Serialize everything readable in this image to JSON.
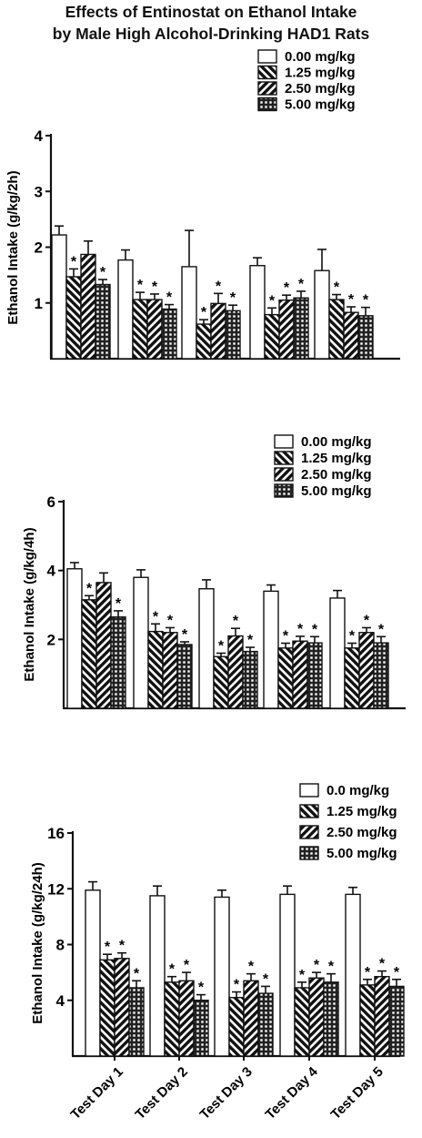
{
  "title": {
    "line1": "Effects of Entinostat on Ethanol Intake",
    "line2": "by Male High Alcohol-Drinking HAD1 Rats"
  },
  "chart_data": [
    {
      "type": "bar",
      "categories": [
        "Test Day 1",
        "Test Day 2",
        "Test Day 3",
        "Test Day 4",
        "Test Day 5"
      ],
      "ylabel": "Ethanol Intake (g/kg/2h)",
      "ylim": [
        0,
        4
      ],
      "yticks": [
        1,
        2,
        3,
        4
      ],
      "legend_position": "top-right",
      "series": [
        {
          "name": "0.00 mg/kg",
          "pattern": "open",
          "values": [
            2.22,
            1.77,
            1.65,
            1.67,
            1.58
          ],
          "errors": [
            0.16,
            0.18,
            0.65,
            0.14,
            0.38
          ],
          "significant": [
            false,
            false,
            false,
            false,
            false
          ]
        },
        {
          "name": "1.25 mg/kg",
          "pattern": "back-hatch",
          "values": [
            1.47,
            1.06,
            0.62,
            0.79,
            1.06
          ],
          "errors": [
            0.14,
            0.13,
            0.08,
            0.12,
            0.09
          ],
          "significant": [
            true,
            true,
            true,
            true,
            true
          ]
        },
        {
          "name": "2.50 mg/kg",
          "pattern": "forward-hatch",
          "values": [
            1.87,
            1.06,
            0.99,
            1.05,
            0.83
          ],
          "errors": [
            0.24,
            0.1,
            0.18,
            0.09,
            0.1
          ],
          "significant": [
            false,
            true,
            true,
            true,
            true
          ]
        },
        {
          "name": "5.00 mg/kg",
          "pattern": "crosshatch",
          "values": [
            1.33,
            0.89,
            0.86,
            1.09,
            0.77
          ],
          "errors": [
            0.09,
            0.08,
            0.1,
            0.12,
            0.15
          ],
          "significant": [
            true,
            true,
            true,
            true,
            true
          ]
        }
      ]
    },
    {
      "type": "bar",
      "categories": [
        "Test Day 1",
        "Test Day 2",
        "Test Day 3",
        "Test Day 4",
        "Test Day 5"
      ],
      "ylabel": "Ethanol Intake (g/kg/4h)",
      "ylim": [
        0,
        6
      ],
      "yticks": [
        2,
        4,
        6
      ],
      "legend_position": "top-right",
      "series": [
        {
          "name": "0.00 mg/kg",
          "pattern": "open",
          "values": [
            4.05,
            3.8,
            3.47,
            3.4,
            3.2
          ],
          "errors": [
            0.18,
            0.22,
            0.26,
            0.18,
            0.22
          ],
          "significant": [
            false,
            false,
            false,
            false,
            false
          ]
        },
        {
          "name": "1.25 mg/kg",
          "pattern": "back-hatch",
          "values": [
            3.15,
            2.23,
            1.5,
            1.75,
            1.75
          ],
          "errors": [
            0.12,
            0.22,
            0.1,
            0.14,
            0.14
          ],
          "significant": [
            true,
            true,
            true,
            true,
            true
          ]
        },
        {
          "name": "2.50 mg/kg",
          "pattern": "forward-hatch",
          "values": [
            3.65,
            2.2,
            2.1,
            1.95,
            2.2
          ],
          "errors": [
            0.28,
            0.14,
            0.22,
            0.14,
            0.14
          ],
          "significant": [
            false,
            true,
            true,
            true,
            true
          ]
        },
        {
          "name": "5.00 mg/kg",
          "pattern": "crosshatch",
          "values": [
            2.65,
            1.85,
            1.65,
            1.9,
            1.9
          ],
          "errors": [
            0.18,
            0.08,
            0.12,
            0.18,
            0.18
          ],
          "significant": [
            true,
            true,
            true,
            true,
            true
          ]
        }
      ]
    },
    {
      "type": "bar",
      "categories": [
        "Test Day 1",
        "Test Day 2",
        "Test Day 3",
        "Test Day 4",
        "Test Day 5"
      ],
      "ylabel": "Ethanol Intake (g/kg/24h)",
      "ylim": [
        0,
        16
      ],
      "yticks": [
        4,
        8,
        12,
        16
      ],
      "legend_position": "top-right",
      "series": [
        {
          "name": "0.0 mg/kg",
          "pattern": "open",
          "values": [
            11.9,
            11.5,
            11.4,
            11.6,
            11.6
          ],
          "errors": [
            0.6,
            0.7,
            0.5,
            0.6,
            0.5
          ],
          "significant": [
            false,
            false,
            false,
            false,
            false
          ]
        },
        {
          "name": "1.25 mg/kg",
          "pattern": "back-hatch",
          "values": [
            6.9,
            5.3,
            4.2,
            4.9,
            5.1
          ],
          "errors": [
            0.4,
            0.4,
            0.4,
            0.4,
            0.4
          ],
          "significant": [
            true,
            true,
            true,
            true,
            true
          ]
        },
        {
          "name": "2.50 mg/kg",
          "pattern": "forward-hatch",
          "values": [
            7.0,
            5.4,
            5.4,
            5.6,
            5.7
          ],
          "errors": [
            0.4,
            0.6,
            0.5,
            0.4,
            0.4
          ],
          "significant": [
            true,
            true,
            true,
            true,
            true
          ]
        },
        {
          "name": "5.00 mg/kg",
          "pattern": "crosshatch",
          "values": [
            4.9,
            4.0,
            4.5,
            5.3,
            5.0
          ],
          "errors": [
            0.5,
            0.4,
            0.5,
            0.6,
            0.5
          ],
          "significant": [
            true,
            true,
            true,
            true,
            true
          ]
        }
      ]
    }
  ]
}
